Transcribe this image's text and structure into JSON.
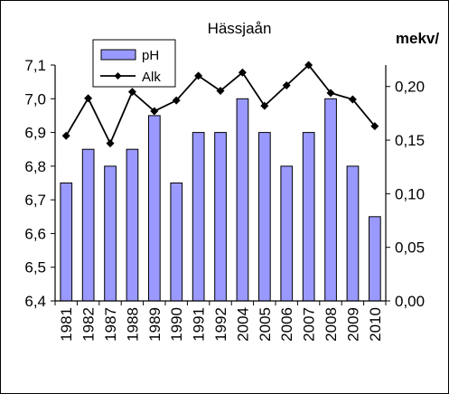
{
  "chart_data": {
    "type": "bar",
    "title": "Hässjaån",
    "y2label": "mekv/",
    "categories": [
      "1981",
      "1982",
      "1987",
      "1988",
      "1989",
      "1990",
      "1991",
      "1992",
      "2004",
      "2005",
      "2006",
      "2007",
      "2008",
      "2009",
      "2010"
    ],
    "series": [
      {
        "name": "pH",
        "type": "bar",
        "axis": "left",
        "values": [
          6.75,
          6.85,
          6.8,
          6.85,
          6.95,
          6.75,
          6.9,
          6.9,
          7.0,
          6.9,
          6.8,
          6.9,
          7.0,
          6.8,
          6.65
        ],
        "color": "#9999ff"
      },
      {
        "name": "Alk",
        "type": "line",
        "axis": "right",
        "values": [
          0.154,
          0.189,
          0.147,
          0.195,
          0.177,
          0.187,
          0.21,
          0.196,
          0.213,
          0.182,
          0.201,
          0.22,
          0.194,
          0.188,
          0.163
        ],
        "color": "#000000",
        "marker": "diamond"
      }
    ],
    "ylim": [
      6.4,
      7.1
    ],
    "yticks": [
      "6,4",
      "6,5",
      "6,6",
      "6,7",
      "6,8",
      "6,9",
      "7,0",
      "7,1"
    ],
    "y2lim": [
      0,
      0.22
    ],
    "y2ticks": [
      "0,00",
      "0,05",
      "0,10",
      "0,15",
      "0,20"
    ],
    "legend": "top-left",
    "grid": false
  }
}
